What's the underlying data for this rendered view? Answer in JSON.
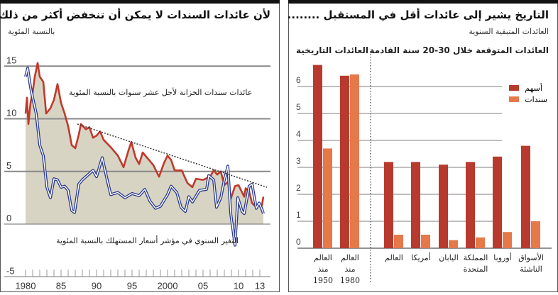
{
  "chart_data": [
    {
      "type": "line",
      "title": "لأن عائدات السندات لا يمكن أن تنخفض أكثر من ذلك",
      "ylabel": "بالنسبة المئوية",
      "xlabel": "",
      "ylim": [
        -5,
        15
      ],
      "xlim": [
        1980,
        2013.7
      ],
      "yticks": [
        15,
        10,
        5,
        0,
        -5
      ],
      "ytick_labels": [
        "15",
        "10",
        "5",
        "0",
        "-5"
      ],
      "xtick_labels": [
        {
          "x": 1980,
          "label": "1980"
        },
        {
          "x": 1985,
          "label": "85"
        },
        {
          "x": 1990,
          "label": "90"
        },
        {
          "x": 1995,
          "label": "95"
        },
        {
          "x": 2000,
          "label": "2000"
        },
        {
          "x": 2005,
          "label": "05"
        },
        {
          "x": 2010,
          "label": "10"
        },
        {
          "x": 2013,
          "label": "13"
        }
      ],
      "grid": true,
      "series": [
        {
          "name": "عائدات سندات الخزانة لأجل عشر سنوات بالنسبة المئوية",
          "color": "#c0392b",
          "shaded": true,
          "x": [
            1980.0,
            1980.2,
            1980.4,
            1980.7,
            1981.0,
            1981.3,
            1981.7,
            1982.0,
            1982.5,
            1982.9,
            1983.5,
            1984.0,
            1984.5,
            1985.0,
            1985.5,
            1986.0,
            1986.5,
            1987.0,
            1987.5,
            1987.8,
            1988.5,
            1989.0,
            1989.5,
            1990.0,
            1990.5,
            1991.0,
            1992.0,
            1993.0,
            1993.8,
            1994.5,
            1994.9,
            1995.5,
            1996.0,
            1996.5,
            1997.0,
            1998.0,
            1998.8,
            1999.5,
            2000.0,
            2000.5,
            2001.0,
            2002.0,
            2002.8,
            2003.5,
            2004.0,
            2005.0,
            2006.0,
            2006.5,
            2007.0,
            2007.5,
            2008.0,
            2008.5,
            2008.9,
            2009.5,
            2010.0,
            2010.8,
            2011.0,
            2011.5,
            2011.9,
            2012.5,
            2012.9,
            2013.3,
            2013.5
          ],
          "y": [
            10.5,
            12,
            9.5,
            11.5,
            12.5,
            14,
            15.3,
            14,
            13.5,
            10.5,
            11,
            11.8,
            13.3,
            11.5,
            10.5,
            9.3,
            7.5,
            7.2,
            8.5,
            9.5,
            9,
            9.2,
            8.2,
            8.4,
            8.8,
            8.0,
            7.3,
            6.5,
            5.4,
            7.0,
            7.8,
            6.3,
            5.7,
            6.8,
            6.4,
            5.6,
            4.5,
            5.8,
            6.5,
            6.1,
            5.1,
            5.1,
            3.9,
            3.5,
            4.3,
            4.2,
            4.5,
            5.1,
            4.7,
            5.0,
            3.7,
            4.0,
            2.4,
            3.6,
            3.7,
            2.6,
            3.4,
            3.1,
            2.0,
            1.6,
            1.8,
            1.8,
            2.6
          ]
        },
        {
          "name": "التغير السنوي في مؤشر أسعار المستهلك بالنسبة المئوية",
          "color": "#2c3a8c",
          "x": [
            1980.0,
            1980.3,
            1980.7,
            1981.0,
            1981.5,
            1982.0,
            1982.5,
            1983.0,
            1983.5,
            1984.0,
            1984.5,
            1985.0,
            1985.5,
            1986.0,
            1986.5,
            1986.9,
            1987.5,
            1988.0,
            1989.0,
            1989.5,
            1990.0,
            1990.8,
            1991.5,
            1992.0,
            1993.0,
            1994.0,
            1995.0,
            1996.0,
            1996.8,
            1997.5,
            1998.3,
            1999.0,
            2000.0,
            2000.5,
            2001.3,
            2001.9,
            2002.5,
            2003.0,
            2003.5,
            2004.5,
            2005.5,
            2005.8,
            2006.5,
            2006.9,
            2007.5,
            2008.0,
            2008.5,
            2008.9,
            2009.5,
            2009.9,
            2010.5,
            2010.8,
            2011.5,
            2011.9,
            2012.5,
            2012.9,
            2013.3,
            2013.5
          ],
          "y": [
            14,
            14.8,
            13,
            12,
            10.5,
            7.5,
            6.5,
            3.5,
            2.5,
            4.3,
            4.2,
            3.5,
            3.6,
            3.2,
            1.3,
            1.1,
            3.8,
            4.2,
            4.8,
            5.1,
            4.5,
            6.3,
            4.2,
            2.8,
            3.0,
            2.5,
            2.9,
            2.7,
            3.3,
            2.2,
            1.5,
            1.7,
            2.8,
            3.6,
            3.0,
            1.6,
            1.2,
            2.6,
            2.1,
            3.2,
            3.3,
            4.6,
            4.2,
            1.6,
            2.5,
            4.2,
            5.5,
            1.0,
            -2.0,
            2.5,
            1.2,
            1.0,
            3.6,
            3.8,
            1.5,
            2.0,
            1.4,
            1.0
          ]
        },
        {
          "name": "trend",
          "color": "#333333",
          "dotted": true,
          "x": [
            1987.3,
            2014
          ],
          "y": [
            9.5,
            3.5
          ]
        }
      ]
    },
    {
      "type": "bar",
      "title": "التاريخ يشير إلى عائدات أقل في المستقبل ........",
      "subtitle": "العائدات المتبقية السنوية",
      "section_historical": "العائدات التاريخية",
      "section_expected": "العائدات المتوقعة خلال 30-20 سنة القادمة",
      "ylim": [
        0,
        7
      ],
      "yticks": [
        0,
        1,
        2,
        3,
        4,
        5,
        6
      ],
      "ytick_labels": [
        "0",
        "1",
        "2",
        "3",
        "4",
        "5",
        "6"
      ],
      "grid": true,
      "legend_position": "top-right",
      "categories": [
        {
          "line1": "العالم",
          "line2": "منذ",
          "line3": "1950"
        },
        {
          "line1": "العالم",
          "line2": "منذ",
          "line3": "1980"
        },
        {
          "line1": "العالم",
          "line2": "",
          "line3": ""
        },
        {
          "line1": "أمريكا",
          "line2": "",
          "line3": ""
        },
        {
          "line1": "اليابان",
          "line2": "",
          "line3": ""
        },
        {
          "line1": "المملكة",
          "line2": "المتحدة",
          "line3": ""
        },
        {
          "line1": "أوروبا",
          "line2": "",
          "line3": ""
        },
        {
          "line1": "الأسواق",
          "line2": "الناشئة",
          "line3": ""
        }
      ],
      "series": [
        {
          "name": "أسهم",
          "color": "#b83a2e",
          "values": [
            6.8,
            6.4,
            3.2,
            3.2,
            3.1,
            3.2,
            3.4,
            3.8
          ]
        },
        {
          "name": "سندات",
          "color": "#e5794a",
          "values": [
            3.7,
            6.45,
            0.5,
            0.5,
            0.3,
            0.4,
            0.6,
            1.0
          ]
        }
      ]
    }
  ]
}
